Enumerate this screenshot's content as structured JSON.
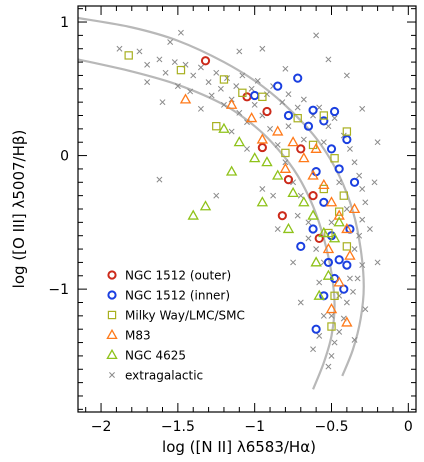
{
  "chart_data": {
    "type": "scatter",
    "title": "",
    "xlabel": "log  ([N II] λ6583/Hα)",
    "ylabel": "log  ([O III] λ5007/Hβ)",
    "xlim": [
      -2.15,
      0.05
    ],
    "ylim": [
      -1.92,
      1.12
    ],
    "x_ticks": [
      -2,
      -1.5,
      -1,
      -0.5,
      0
    ],
    "x_tick_labels": [
      "−2",
      "−1.5",
      "−1",
      "−0.5",
      "0"
    ],
    "y_ticks": [
      -1,
      0,
      1
    ],
    "y_tick_labels": [
      "−1",
      "0",
      "1"
    ],
    "grid": false,
    "legend_position": "bottom-left",
    "curves": [
      {
        "x": [
          -2.15,
          -1.8,
          -1.5,
          -1.2,
          -1.0,
          -0.85,
          -0.72,
          -0.62,
          -0.55,
          -0.5,
          -0.48,
          -0.5,
          -0.55,
          -0.62
        ],
        "y": [
          0.72,
          0.63,
          0.53,
          0.38,
          0.22,
          0.05,
          -0.15,
          -0.38,
          -0.62,
          -0.88,
          -1.12,
          -1.35,
          -1.55,
          -1.75
        ]
      },
      {
        "x": [
          -2.15,
          -1.8,
          -1.5,
          -1.2,
          -0.95,
          -0.75,
          -0.58,
          -0.45,
          -0.36,
          -0.31,
          -0.29,
          -0.31,
          -0.36,
          -0.43
        ],
        "y": [
          1.03,
          0.96,
          0.86,
          0.7,
          0.52,
          0.32,
          0.1,
          -0.15,
          -0.42,
          -0.7,
          -0.98,
          -1.22,
          -1.45,
          -1.65
        ]
      }
    ],
    "series": [
      {
        "name": "NGC 1512",
        "name_suffix": "(outer)",
        "marker": "circle",
        "color": "#cc2a1a",
        "points": [
          [
            -1.32,
            0.71
          ],
          [
            -1.05,
            0.44
          ],
          [
            -0.92,
            0.33
          ],
          [
            -0.78,
            -0.18
          ],
          [
            -0.62,
            -0.3
          ],
          [
            -0.95,
            0.06
          ],
          [
            -0.7,
            0.05
          ],
          [
            -0.58,
            -0.62
          ],
          [
            -0.82,
            -0.45
          ]
        ]
      },
      {
        "name": "NGC 1512",
        "name_suffix": "(inner)",
        "marker": "circle",
        "color": "#1a3fe0",
        "points": [
          [
            -1.0,
            0.45
          ],
          [
            -0.85,
            0.52
          ],
          [
            -0.72,
            0.58
          ],
          [
            -0.62,
            0.34
          ],
          [
            -0.55,
            0.26
          ],
          [
            -0.48,
            0.33
          ],
          [
            -0.4,
            0.12
          ],
          [
            -0.65,
            0.22
          ],
          [
            -0.78,
            0.3
          ],
          [
            -0.5,
            0.05
          ],
          [
            -0.45,
            -0.1
          ],
          [
            -0.6,
            -0.12
          ],
          [
            -0.55,
            -0.35
          ],
          [
            -0.62,
            -0.55
          ],
          [
            -0.5,
            -0.6
          ],
          [
            -0.45,
            -0.78
          ],
          [
            -0.52,
            -0.8
          ],
          [
            -0.4,
            -0.82
          ],
          [
            -0.48,
            -0.92
          ],
          [
            -0.42,
            -1.0
          ],
          [
            -0.55,
            -1.05
          ],
          [
            -0.6,
            -1.3
          ],
          [
            -0.38,
            -0.55
          ],
          [
            -0.7,
            -0.68
          ],
          [
            -0.35,
            -0.2
          ]
        ]
      },
      {
        "name": "Milky Way/LMC/SMC",
        "marker": "square",
        "color": "#a8b020",
        "points": [
          [
            -1.82,
            0.75
          ],
          [
            -1.48,
            0.64
          ],
          [
            -1.2,
            0.57
          ],
          [
            -1.08,
            0.47
          ],
          [
            -0.95,
            0.44
          ],
          [
            -0.72,
            0.28
          ],
          [
            -0.55,
            0.3
          ],
          [
            -0.4,
            0.18
          ],
          [
            -0.62,
            0.08
          ],
          [
            -0.48,
            -0.02
          ],
          [
            -0.55,
            -0.25
          ],
          [
            -0.45,
            -0.42
          ],
          [
            -0.52,
            -0.58
          ],
          [
            -0.4,
            -0.68
          ],
          [
            -0.48,
            -1.05
          ],
          [
            -0.5,
            -1.28
          ],
          [
            -1.25,
            0.22
          ],
          [
            -0.8,
            0.02
          ],
          [
            -0.42,
            -0.3
          ]
        ]
      },
      {
        "name": "M83",
        "marker": "triangle",
        "color": "#ff7a1a",
        "points": [
          [
            -1.45,
            0.42
          ],
          [
            -1.15,
            0.38
          ],
          [
            -1.02,
            0.28
          ],
          [
            -0.95,
            0.12
          ],
          [
            -0.85,
            0.18
          ],
          [
            -0.75,
            0.1
          ],
          [
            -0.68,
            -0.02
          ],
          [
            -0.62,
            -0.15
          ],
          [
            -0.55,
            -0.22
          ],
          [
            -0.5,
            -0.35
          ],
          [
            -0.45,
            -0.45
          ],
          [
            -0.4,
            -0.55
          ],
          [
            -0.52,
            -0.7
          ],
          [
            -0.38,
            -0.75
          ],
          [
            -0.45,
            -0.95
          ],
          [
            -0.5,
            -1.15
          ],
          [
            -0.4,
            -1.25
          ],
          [
            -0.8,
            -0.1
          ],
          [
            -0.35,
            -0.4
          ],
          [
            -0.6,
            0.05
          ]
        ]
      },
      {
        "name": "NGC 4625",
        "marker": "triangle",
        "color": "#8fc21a",
        "points": [
          [
            -1.2,
            0.2
          ],
          [
            -1.1,
            0.1
          ],
          [
            -1.0,
            -0.02
          ],
          [
            -0.92,
            -0.05
          ],
          [
            -0.85,
            -0.15
          ],
          [
            -0.75,
            -0.28
          ],
          [
            -0.68,
            -0.35
          ],
          [
            -0.62,
            -0.45
          ],
          [
            -0.55,
            -0.58
          ],
          [
            -0.48,
            -0.62
          ],
          [
            -0.6,
            -0.8
          ],
          [
            -0.52,
            -0.9
          ],
          [
            -0.58,
            -1.05
          ],
          [
            -1.4,
            -0.45
          ],
          [
            -1.32,
            -0.38
          ],
          [
            -0.95,
            -0.35
          ],
          [
            -0.78,
            -0.55
          ],
          [
            -0.45,
            -0.5
          ],
          [
            -1.15,
            -0.12
          ]
        ]
      },
      {
        "name": "extragalactic",
        "marker": "cross",
        "color": "#8a8a8a",
        "points": [
          [
            -1.88,
            0.8
          ],
          [
            -1.75,
            0.78
          ],
          [
            -1.7,
            0.68
          ],
          [
            -1.62,
            0.72
          ],
          [
            -1.58,
            0.62
          ],
          [
            -1.52,
            0.7
          ],
          [
            -1.45,
            0.68
          ],
          [
            -1.4,
            0.6
          ],
          [
            -1.35,
            0.66
          ],
          [
            -1.3,
            0.55
          ],
          [
            -1.25,
            0.62
          ],
          [
            -1.22,
            0.5
          ],
          [
            -1.18,
            0.58
          ],
          [
            -1.12,
            0.52
          ],
          [
            -1.08,
            0.6
          ],
          [
            -1.02,
            0.5
          ],
          [
            -0.98,
            0.56
          ],
          [
            -0.92,
            0.46
          ],
          [
            -0.88,
            0.52
          ],
          [
            -0.82,
            0.4
          ],
          [
            -0.78,
            0.46
          ],
          [
            -0.72,
            0.36
          ],
          [
            -0.68,
            0.42
          ],
          [
            -0.62,
            0.3
          ],
          [
            -0.58,
            0.36
          ],
          [
            -0.52,
            0.22
          ],
          [
            -0.48,
            0.28
          ],
          [
            -0.42,
            0.15
          ],
          [
            -0.38,
            0.05
          ],
          [
            -0.35,
            -0.05
          ],
          [
            -0.32,
            -0.15
          ],
          [
            -0.3,
            -0.25
          ],
          [
            -0.28,
            -0.35
          ],
          [
            -0.3,
            -0.48
          ],
          [
            -0.32,
            -0.6
          ],
          [
            -0.35,
            -0.7
          ],
          [
            -0.3,
            -0.82
          ],
          [
            -0.33,
            -0.92
          ],
          [
            -0.36,
            -1.02
          ],
          [
            -0.4,
            -1.1
          ],
          [
            -0.42,
            -1.22
          ],
          [
            -0.45,
            -1.32
          ],
          [
            -0.48,
            -1.4
          ],
          [
            -0.5,
            -1.5
          ],
          [
            -0.52,
            -1.58
          ],
          [
            -0.55,
            -1.2
          ],
          [
            -0.58,
            -0.95
          ],
          [
            -0.6,
            -0.7
          ],
          [
            -0.65,
            -0.5
          ],
          [
            -0.7,
            -0.3
          ],
          [
            -0.75,
            -0.2
          ],
          [
            -0.8,
            -0.05
          ],
          [
            -0.85,
            0.08
          ],
          [
            -0.9,
            0.2
          ],
          [
            -0.95,
            0.3
          ],
          [
            -1.0,
            0.38
          ],
          [
            -1.05,
            0.25
          ],
          [
            -1.1,
            0.32
          ],
          [
            -1.15,
            0.42
          ],
          [
            -1.2,
            0.38
          ],
          [
            -1.28,
            0.45
          ],
          [
            -1.35,
            0.35
          ],
          [
            -1.42,
            0.48
          ],
          [
            -1.5,
            0.52
          ],
          [
            -1.6,
            0.4
          ],
          [
            -1.7,
            0.55
          ],
          [
            -1.48,
            0.92
          ],
          [
            -1.55,
            0.85
          ],
          [
            -1.1,
            0.78
          ],
          [
            -0.95,
            0.8
          ],
          [
            -0.8,
            0.65
          ],
          [
            -0.6,
            0.9
          ],
          [
            -0.52,
            0.72
          ],
          [
            -0.4,
            0.6
          ],
          [
            -0.3,
            0.35
          ],
          [
            -0.2,
            0.1
          ],
          [
            -0.22,
            -0.2
          ],
          [
            -0.25,
            -0.55
          ],
          [
            -0.2,
            -0.8
          ],
          [
            -0.28,
            -1.15
          ],
          [
            -0.35,
            -1.38
          ],
          [
            -0.62,
            -1.45
          ],
          [
            -0.7,
            -1.1
          ],
          [
            -0.75,
            -0.8
          ],
          [
            -0.85,
            -0.55
          ],
          [
            -0.95,
            -0.25
          ],
          [
            -1.25,
            -0.3
          ],
          [
            -1.62,
            -0.18
          ],
          [
            -0.55,
            0.1
          ],
          [
            -0.45,
            -0.2
          ],
          [
            -0.4,
            -0.4
          ],
          [
            -0.5,
            -0.5
          ],
          [
            -0.55,
            -0.8
          ],
          [
            -0.45,
            -1.05
          ],
          [
            -0.38,
            -0.92
          ],
          [
            -0.65,
            -0.62
          ],
          [
            -0.72,
            -0.45
          ],
          [
            -0.88,
            -0.3
          ],
          [
            -0.68,
            0.12
          ],
          [
            -0.78,
            0.22
          ],
          [
            -1.05,
            0.05
          ],
          [
            -1.15,
            0.18
          ],
          [
            -0.5,
            -1.2
          ],
          [
            -0.58,
            -1.35
          ]
        ]
      }
    ]
  }
}
